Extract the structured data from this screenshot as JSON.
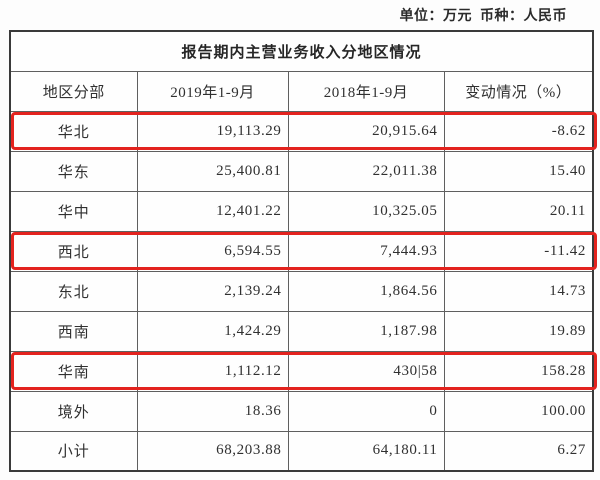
{
  "meta": {
    "unit_label": "单位：万元  币种：人民币"
  },
  "table": {
    "title": "报告期内主营业务收入分地区情况",
    "columns": [
      "地区分部",
      "2019年1-9月",
      "2018年1-9月",
      "变动情况（%）"
    ],
    "rows": [
      {
        "region": "华北",
        "v2019": "19,113.29",
        "v2018": "20,915.64",
        "change": "-8.62",
        "highlighted": true
      },
      {
        "region": "华东",
        "v2019": "25,400.81",
        "v2018": "22,011.38",
        "change": "15.40",
        "highlighted": false
      },
      {
        "region": "华中",
        "v2019": "12,401.22",
        "v2018": "10,325.05",
        "change": "20.11",
        "highlighted": false
      },
      {
        "region": "西北",
        "v2019": "6,594.55",
        "v2018": "7,444.93",
        "change": "-11.42",
        "highlighted": true
      },
      {
        "region": "东北",
        "v2019": "2,139.24",
        "v2018": "1,864.56",
        "change": "14.73",
        "highlighted": false
      },
      {
        "region": "西南",
        "v2019": "1,424.29",
        "v2018": "1,187.98",
        "change": "19.89",
        "highlighted": false
      },
      {
        "region": "华南",
        "v2019": "1,112.12",
        "v2018": "430|58",
        "change": "158.28",
        "highlighted": true
      },
      {
        "region": "境外",
        "v2019": "18.36",
        "v2018": "0",
        "change": "100.00",
        "highlighted": false
      },
      {
        "region": "小计",
        "v2019": "68,203.88",
        "v2018": "64,180.11",
        "change": "6.27",
        "highlighted": false
      }
    ],
    "highlight_color": "#e3231e"
  }
}
